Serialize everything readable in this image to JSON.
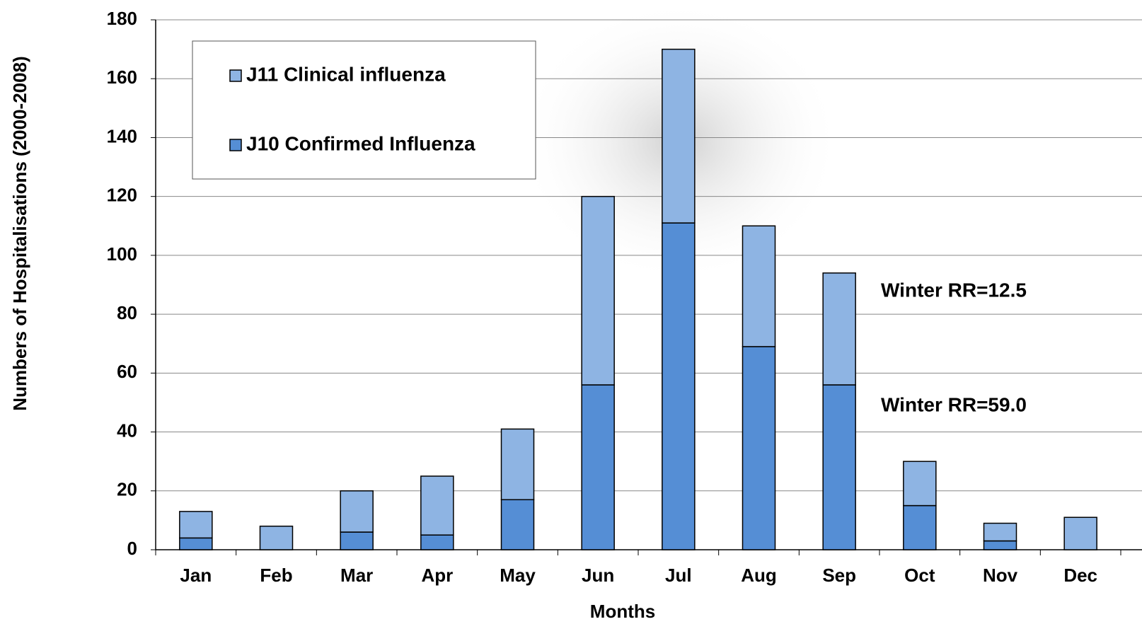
{
  "chart_data": {
    "type": "stacked_bar",
    "xlabel": "Months",
    "ylabel": "Numbers of Hospitalisations (2000-2008)",
    "categories": [
      "Jan",
      "Feb",
      "Mar",
      "Apr",
      "May",
      "Jun",
      "Jul",
      "Aug",
      "Sep",
      "Oct",
      "Nov",
      "Dec"
    ],
    "series": [
      {
        "name": "J10 Confirmed Influenza",
        "color": "#558ed5",
        "values": [
          4,
          0,
          6,
          5,
          17,
          56,
          111,
          69,
          56,
          15,
          3,
          0
        ]
      },
      {
        "name": "J11 Clinical influenza",
        "color": "#8eb4e3",
        "values": [
          9,
          8,
          14,
          20,
          24,
          64,
          59,
          41,
          38,
          15,
          6,
          11
        ]
      }
    ],
    "ylim": [
      0,
      180
    ],
    "yticks": [
      0,
      20,
      40,
      60,
      80,
      100,
      120,
      140,
      160,
      180
    ],
    "grid": true,
    "annotations": [
      "Winter RR=12.5",
      "Winter RR=59.0"
    ]
  }
}
